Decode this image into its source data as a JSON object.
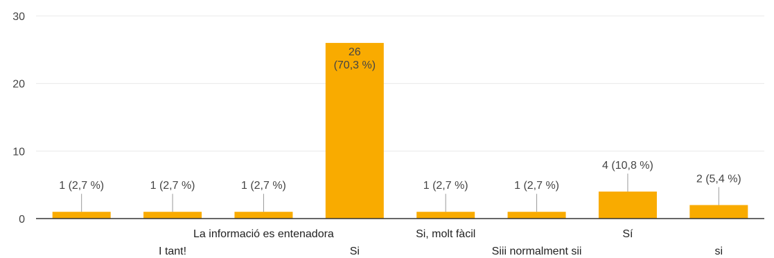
{
  "chart_data": {
    "type": "bar",
    "categories": [
      "",
      "I tant!",
      "La informació es entenadora",
      "Si",
      "Si, molt fàcil",
      "Siii normalment sii",
      "Sí",
      "si"
    ],
    "values": [
      1,
      1,
      1,
      26,
      1,
      1,
      4,
      2
    ],
    "data_labels": [
      [
        "1 (2,7 %)"
      ],
      [
        "1 (2,7 %)"
      ],
      [
        "1 (2,7 %)"
      ],
      [
        "26",
        "(70,3 %)"
      ],
      [
        "1 (2,7 %)"
      ],
      [
        "1 (2,7 %)"
      ],
      [
        "4 (10,8 %)"
      ],
      [
        "2 (5,4 %)"
      ]
    ],
    "yticks": [
      0,
      10,
      20,
      30
    ],
    "ylim": [
      0,
      30
    ],
    "grid": true,
    "legend": "none",
    "colors": {
      "bar": "#f9ab00",
      "grid": "#e8e8e8",
      "axis": "#333333",
      "leader": "#999999"
    }
  }
}
